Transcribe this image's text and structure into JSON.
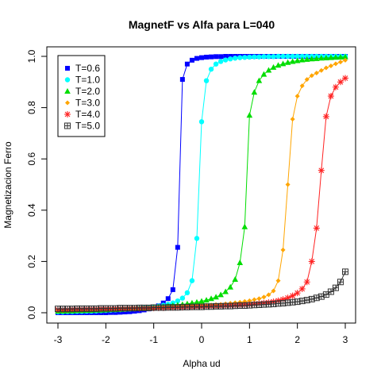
{
  "chart_data": {
    "type": "line",
    "title": "MagnetF vs Alfa para L=040",
    "xlabel": "Alpha ud",
    "ylabel": "Magnetizacion Ferro",
    "xlim": [
      -3.0,
      3.0
    ],
    "ylim": [
      0.0,
      1.0
    ],
    "xticks": [
      -3,
      -2,
      -1,
      0,
      1,
      2,
      3
    ],
    "xtick_labels": [
      "-3",
      "-2",
      "-1",
      "0",
      "1",
      "2",
      "3"
    ],
    "yticks": [
      0.0,
      0.2,
      0.4,
      0.6,
      0.8,
      1.0
    ],
    "ytick_labels": [
      "0.0",
      "0.2",
      "0.4",
      "0.6",
      "0.8",
      "1.0"
    ],
    "grid": false,
    "legend_position": "top-left",
    "series": [
      {
        "name": "T=0.6",
        "color": "#0000ff",
        "marker": "square",
        "x": [
          -3.0,
          -2.9,
          -2.8,
          -2.7,
          -2.6,
          -2.5,
          -2.4,
          -2.3,
          -2.2,
          -2.1,
          -2.0,
          -1.9,
          -1.8,
          -1.7,
          -1.6,
          -1.5,
          -1.4,
          -1.3,
          -1.2,
          -1.1,
          -1.0,
          -0.9,
          -0.8,
          -0.7,
          -0.6,
          -0.5,
          -0.4,
          -0.3,
          -0.2,
          -0.1,
          0.0,
          0.1,
          0.2,
          0.3,
          0.4,
          0.5,
          0.6,
          0.7,
          0.8,
          0.9,
          1.0,
          1.1,
          1.2,
          1.3,
          1.4,
          1.5,
          1.6,
          1.7,
          1.8,
          1.9,
          2.0,
          2.1,
          2.2,
          2.3,
          2.4,
          2.5,
          2.6,
          2.7,
          2.8,
          2.9,
          3.0
        ],
        "y": [
          0.0,
          0.0,
          0.0,
          0.0,
          0.0,
          0.0,
          0.0,
          0.0,
          0.0,
          0.0,
          0.0,
          0.001,
          0.001,
          0.002,
          0.003,
          0.004,
          0.006,
          0.008,
          0.011,
          0.015,
          0.02,
          0.027,
          0.038,
          0.055,
          0.09,
          0.255,
          0.91,
          0.97,
          0.985,
          0.992,
          0.995,
          0.997,
          0.998,
          0.999,
          0.999,
          1.0,
          1.0,
          1.0,
          1.0,
          1.0,
          1.0,
          1.0,
          1.0,
          1.0,
          1.0,
          1.0,
          1.0,
          1.0,
          1.0,
          1.0,
          1.0,
          1.0,
          1.0,
          1.0,
          1.0,
          1.0,
          1.0,
          1.0,
          1.0,
          1.0,
          1.0
        ]
      },
      {
        "name": "T=1.0",
        "color": "#00ffff",
        "marker": "circle",
        "x": [
          -3.0,
          -2.9,
          -2.8,
          -2.7,
          -2.6,
          -2.5,
          -2.4,
          -2.3,
          -2.2,
          -2.1,
          -2.0,
          -1.9,
          -1.8,
          -1.7,
          -1.6,
          -1.5,
          -1.4,
          -1.3,
          -1.2,
          -1.1,
          -1.0,
          -0.9,
          -0.8,
          -0.7,
          -0.6,
          -0.5,
          -0.4,
          -0.3,
          -0.2,
          -0.1,
          0.0,
          0.1,
          0.2,
          0.3,
          0.4,
          0.5,
          0.6,
          0.7,
          0.8,
          0.9,
          1.0,
          1.1,
          1.2,
          1.3,
          1.4,
          1.5,
          1.6,
          1.7,
          1.8,
          1.9,
          2.0,
          2.1,
          2.2,
          2.3,
          2.4,
          2.5,
          2.6,
          2.7,
          2.8,
          2.9,
          3.0
        ],
        "y": [
          0.003,
          0.003,
          0.004,
          0.004,
          0.005,
          0.005,
          0.006,
          0.006,
          0.007,
          0.008,
          0.009,
          0.01,
          0.011,
          0.012,
          0.013,
          0.014,
          0.015,
          0.017,
          0.019,
          0.021,
          0.023,
          0.026,
          0.029,
          0.033,
          0.038,
          0.046,
          0.057,
          0.078,
          0.125,
          0.29,
          0.745,
          0.905,
          0.95,
          0.97,
          0.98,
          0.986,
          0.99,
          0.993,
          0.995,
          0.996,
          0.997,
          0.998,
          0.998,
          0.999,
          0.999,
          0.999,
          1.0,
          1.0,
          1.0,
          1.0,
          1.0,
          1.0,
          1.0,
          1.0,
          1.0,
          1.0,
          1.0,
          1.0,
          1.0,
          1.0,
          1.0
        ]
      },
      {
        "name": "T=2.0",
        "color": "#00dd00",
        "marker": "triangle",
        "x": [
          -3.0,
          -2.9,
          -2.8,
          -2.7,
          -2.6,
          -2.5,
          -2.4,
          -2.3,
          -2.2,
          -2.1,
          -2.0,
          -1.9,
          -1.8,
          -1.7,
          -1.6,
          -1.5,
          -1.4,
          -1.3,
          -1.2,
          -1.1,
          -1.0,
          -0.9,
          -0.8,
          -0.7,
          -0.6,
          -0.5,
          -0.4,
          -0.3,
          -0.2,
          -0.1,
          0.0,
          0.1,
          0.2,
          0.3,
          0.4,
          0.5,
          0.6,
          0.7,
          0.8,
          0.9,
          1.0,
          1.1,
          1.2,
          1.3,
          1.4,
          1.5,
          1.6,
          1.7,
          1.8,
          1.9,
          2.0,
          2.1,
          2.2,
          2.3,
          2.4,
          2.5,
          2.6,
          2.7,
          2.8,
          2.9,
          3.0
        ],
        "y": [
          0.006,
          0.006,
          0.007,
          0.007,
          0.008,
          0.008,
          0.009,
          0.009,
          0.01,
          0.01,
          0.011,
          0.012,
          0.012,
          0.013,
          0.014,
          0.015,
          0.016,
          0.017,
          0.018,
          0.019,
          0.021,
          0.022,
          0.024,
          0.026,
          0.028,
          0.03,
          0.032,
          0.035,
          0.038,
          0.041,
          0.045,
          0.049,
          0.055,
          0.061,
          0.07,
          0.082,
          0.1,
          0.13,
          0.195,
          0.335,
          0.77,
          0.86,
          0.905,
          0.93,
          0.946,
          0.957,
          0.965,
          0.971,
          0.976,
          0.98,
          0.983,
          0.986,
          0.988,
          0.99,
          0.991,
          0.993,
          0.994,
          0.995,
          0.996,
          0.997,
          0.998
        ]
      },
      {
        "name": "T=3.0",
        "color": "#ffa500",
        "marker": "diamond",
        "x": [
          -3.0,
          -2.9,
          -2.8,
          -2.7,
          -2.6,
          -2.5,
          -2.4,
          -2.3,
          -2.2,
          -2.1,
          -2.0,
          -1.9,
          -1.8,
          -1.7,
          -1.6,
          -1.5,
          -1.4,
          -1.3,
          -1.2,
          -1.1,
          -1.0,
          -0.9,
          -0.8,
          -0.7,
          -0.6,
          -0.5,
          -0.4,
          -0.3,
          -0.2,
          -0.1,
          0.0,
          0.1,
          0.2,
          0.3,
          0.4,
          0.5,
          0.6,
          0.7,
          0.8,
          0.9,
          1.0,
          1.1,
          1.2,
          1.3,
          1.4,
          1.5,
          1.6,
          1.7,
          1.8,
          1.9,
          2.0,
          2.1,
          2.2,
          2.3,
          2.4,
          2.5,
          2.6,
          2.7,
          2.8,
          2.9,
          3.0
        ],
        "y": [
          0.009,
          0.009,
          0.01,
          0.01,
          0.011,
          0.011,
          0.012,
          0.012,
          0.013,
          0.013,
          0.014,
          0.014,
          0.015,
          0.015,
          0.016,
          0.016,
          0.017,
          0.017,
          0.018,
          0.019,
          0.019,
          0.02,
          0.021,
          0.021,
          0.022,
          0.023,
          0.024,
          0.025,
          0.026,
          0.027,
          0.028,
          0.029,
          0.03,
          0.032,
          0.033,
          0.035,
          0.037,
          0.039,
          0.041,
          0.044,
          0.047,
          0.051,
          0.055,
          0.061,
          0.07,
          0.085,
          0.125,
          0.245,
          0.5,
          0.755,
          0.845,
          0.885,
          0.91,
          0.925,
          0.935,
          0.945,
          0.955,
          0.963,
          0.971,
          0.978,
          0.985
        ]
      },
      {
        "name": "T=4.0",
        "color": "#ff2222",
        "marker": "star",
        "x": [
          -3.0,
          -2.9,
          -2.8,
          -2.7,
          -2.6,
          -2.5,
          -2.4,
          -2.3,
          -2.2,
          -2.1,
          -2.0,
          -1.9,
          -1.8,
          -1.7,
          -1.6,
          -1.5,
          -1.4,
          -1.3,
          -1.2,
          -1.1,
          -1.0,
          -0.9,
          -0.8,
          -0.7,
          -0.6,
          -0.5,
          -0.4,
          -0.3,
          -0.2,
          -0.1,
          0.0,
          0.1,
          0.2,
          0.3,
          0.4,
          0.5,
          0.6,
          0.7,
          0.8,
          0.9,
          1.0,
          1.1,
          1.2,
          1.3,
          1.4,
          1.5,
          1.6,
          1.7,
          1.8,
          1.9,
          2.0,
          2.1,
          2.2,
          2.3,
          2.4,
          2.5,
          2.6,
          2.7,
          2.8,
          2.9,
          3.0
        ],
        "y": [
          0.012,
          0.012,
          0.012,
          0.013,
          0.013,
          0.013,
          0.014,
          0.014,
          0.014,
          0.015,
          0.015,
          0.015,
          0.016,
          0.016,
          0.016,
          0.017,
          0.017,
          0.017,
          0.018,
          0.018,
          0.018,
          0.019,
          0.019,
          0.02,
          0.02,
          0.021,
          0.021,
          0.022,
          0.022,
          0.023,
          0.023,
          0.024,
          0.025,
          0.025,
          0.026,
          0.027,
          0.028,
          0.029,
          0.03,
          0.031,
          0.032,
          0.034,
          0.036,
          0.038,
          0.04,
          0.043,
          0.047,
          0.052,
          0.058,
          0.066,
          0.077,
          0.093,
          0.12,
          0.2,
          0.33,
          0.555,
          0.765,
          0.845,
          0.88,
          0.9,
          0.915
        ]
      },
      {
        "name": "T=5.0",
        "color": "#333333",
        "marker": "boxplus",
        "x": [
          -3.0,
          -2.9,
          -2.8,
          -2.7,
          -2.6,
          -2.5,
          -2.4,
          -2.3,
          -2.2,
          -2.1,
          -2.0,
          -1.9,
          -1.8,
          -1.7,
          -1.6,
          -1.5,
          -1.4,
          -1.3,
          -1.2,
          -1.1,
          -1.0,
          -0.9,
          -0.8,
          -0.7,
          -0.6,
          -0.5,
          -0.4,
          -0.3,
          -0.2,
          -0.1,
          0.0,
          0.1,
          0.2,
          0.3,
          0.4,
          0.5,
          0.6,
          0.7,
          0.8,
          0.9,
          1.0,
          1.1,
          1.2,
          1.3,
          1.4,
          1.5,
          1.6,
          1.7,
          1.8,
          1.9,
          2.0,
          2.1,
          2.2,
          2.3,
          2.4,
          2.5,
          2.6,
          2.7,
          2.8,
          2.9,
          3.0
        ],
        "y": [
          0.015,
          0.015,
          0.015,
          0.015,
          0.016,
          0.016,
          0.016,
          0.016,
          0.016,
          0.017,
          0.017,
          0.017,
          0.017,
          0.018,
          0.018,
          0.018,
          0.018,
          0.019,
          0.019,
          0.019,
          0.02,
          0.02,
          0.02,
          0.021,
          0.021,
          0.021,
          0.022,
          0.022,
          0.023,
          0.023,
          0.023,
          0.024,
          0.024,
          0.025,
          0.025,
          0.026,
          0.026,
          0.027,
          0.028,
          0.028,
          0.029,
          0.03,
          0.031,
          0.032,
          0.033,
          0.034,
          0.036,
          0.037,
          0.039,
          0.041,
          0.043,
          0.046,
          0.049,
          0.053,
          0.058,
          0.063,
          0.071,
          0.082,
          0.097,
          0.12,
          0.16
        ]
      }
    ]
  }
}
